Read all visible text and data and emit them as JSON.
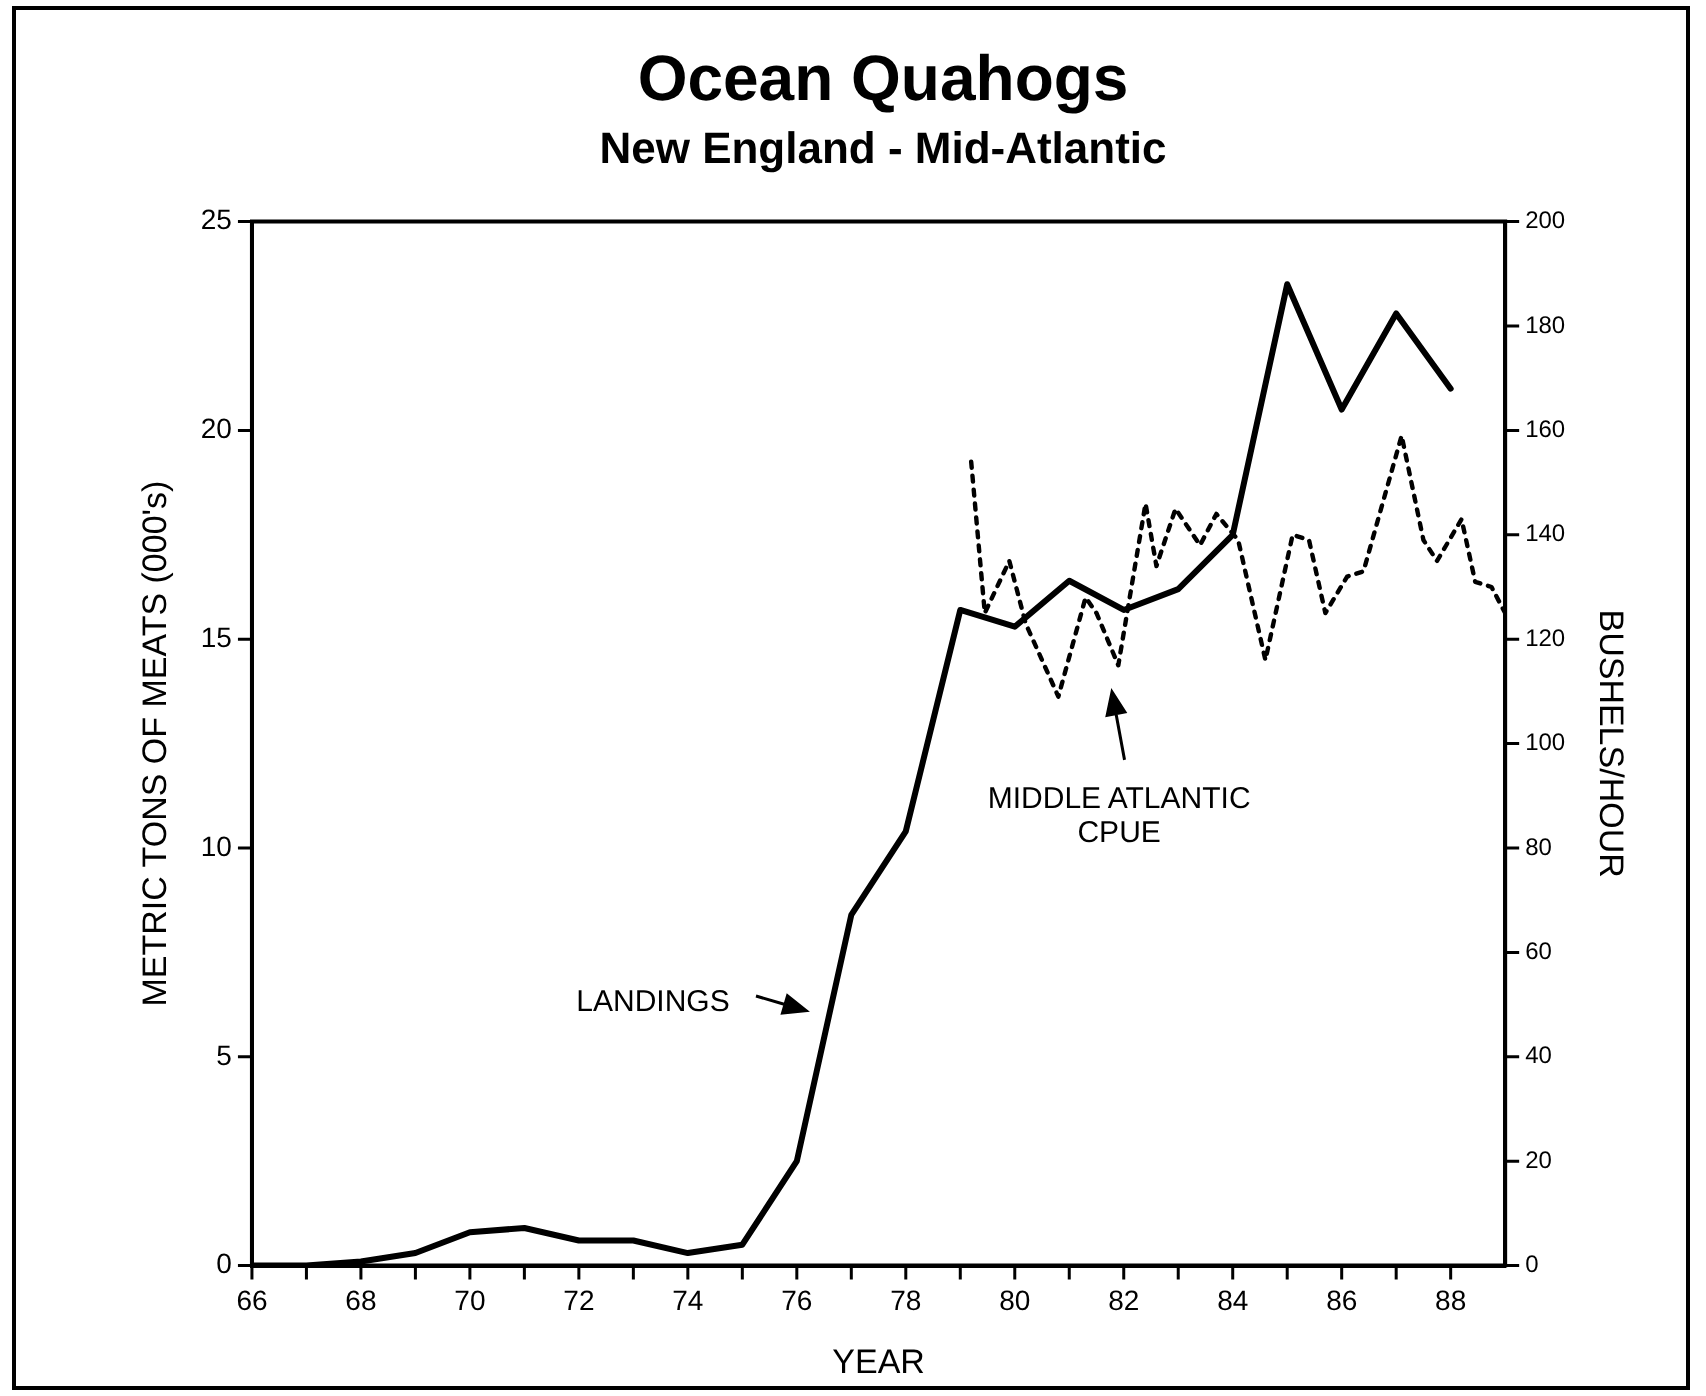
{
  "chart_data": {
    "type": "line",
    "title": "Ocean Quahogs",
    "subtitle": "New England - Mid-Atlantic",
    "xlabel": "YEAR",
    "ylabel": "METRIC TONS OF MEATS (000's)",
    "y2label": "BUSHELS/HOUR",
    "xlim": [
      66,
      89
    ],
    "xticks": [
      66,
      {
        "value": 67,
        "label": null
      },
      68,
      {
        "value": 69,
        "label": null
      },
      70,
      {
        "value": 71,
        "label": null
      },
      72,
      {
        "value": 73,
        "label": null
      },
      74,
      {
        "value": 75,
        "label": null
      },
      76,
      {
        "value": 77,
        "label": null
      },
      78,
      {
        "value": 79,
        "label": null
      },
      80,
      {
        "value": 81,
        "label": null
      },
      82,
      {
        "value": 83,
        "label": null
      },
      84,
      {
        "value": 85,
        "label": null
      },
      86,
      {
        "value": 87,
        "label": null
      },
      88
    ],
    "ylim": [
      0,
      25
    ],
    "yticks": [
      0,
      5,
      10,
      15,
      20,
      25
    ],
    "y2lim": [
      0,
      200
    ],
    "y2ticks": [
      0,
      20,
      40,
      60,
      80,
      100,
      120,
      140,
      160,
      180,
      200
    ],
    "series": [
      {
        "color": "#000000",
        "line_style": "solid",
        "x": [
          66,
          67,
          68,
          69,
          70,
          71,
          72,
          73,
          74,
          75,
          76,
          77,
          78,
          79,
          80,
          81,
          82,
          83,
          84,
          85,
          86,
          87,
          88
        ],
        "values": [
          0,
          0,
          0.1,
          0.3,
          0.8,
          0.9,
          0.6,
          0.6,
          0.3,
          0.5,
          2.5,
          8.4,
          10.4,
          15.7,
          15.3,
          16.4,
          15.7,
          16.2,
          17.5,
          23.5,
          20.5,
          22.8,
          21
        ]
      },
      {
        "color": "#000000",
        "line_style": "dotted",
        "axis": "y2",
        "x": [
          79.2,
          79.45,
          79.9,
          80.2,
          80.8,
          81.3,
          81.5,
          81.9,
          82.4,
          82.6,
          82.95,
          83.4,
          83.7,
          84.1,
          84.6,
          85.1,
          85.4,
          85.7,
          86.1,
          86.4,
          87.1,
          87.5,
          87.75,
          88.2,
          88.45,
          88.75,
          89
        ],
        "values": [
          154,
          125,
          135,
          123,
          109,
          128,
          125,
          115,
          146,
          134,
          145,
          138,
          144,
          139,
          116,
          140,
          139,
          125,
          132,
          133,
          159,
          139,
          135,
          143,
          131,
          130,
          125
        ]
      }
    ],
    "annotations": [
      "LANDINGS",
      "MIDDLE ATLANTIC\nCPUE"
    ],
    "grid": false,
    "legend": false,
    "marker": "none"
  }
}
